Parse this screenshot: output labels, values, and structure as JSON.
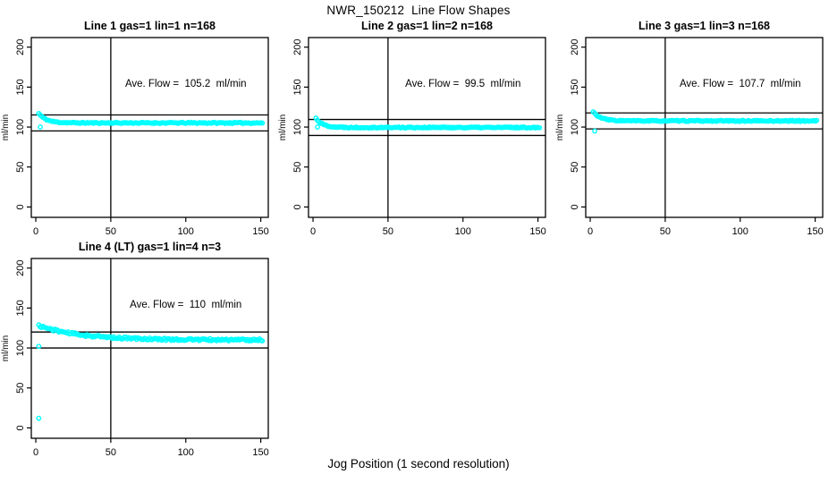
{
  "figure": {
    "title": "NWR_150212  Line Flow Shapes",
    "xlabel": "Jog Position (1 second resolution)",
    "background": "#ffffff",
    "axis_color": "#000000",
    "point_color": "#00ffff"
  },
  "chart_data": [
    {
      "type": "scatter",
      "title": "Line 1 gas=1 lin=1 n=168",
      "annotation": "Ave. Flow =  105.2  ml/min",
      "ave_flow_ml_min": 105.2,
      "n": 168,
      "ylabel": "ml/min",
      "x_ticks": [
        0,
        50,
        100,
        150
      ],
      "y_ticks": [
        0,
        50,
        100,
        150,
        200
      ],
      "xlim": [
        -3,
        155
      ],
      "ylim": [
        -13,
        212
      ],
      "vline_x": 50,
      "hlines": [
        115.2,
        95.2
      ],
      "curve": {
        "start": 117,
        "settle": 105.2,
        "tau": 5,
        "noise": 0.7,
        "x_from": 2,
        "x_to": 151,
        "seed": 11
      },
      "outliers": [
        [
          3,
          100
        ]
      ],
      "annotation_xy": [
        100,
        155
      ],
      "grid": false,
      "legend": null
    },
    {
      "type": "scatter",
      "title": "Line 2 gas=1 lin=2 n=168",
      "annotation": "Ave. Flow =  99.5  ml/min",
      "ave_flow_ml_min": 99.5,
      "n": 168,
      "ylabel": "ml/min",
      "x_ticks": [
        0,
        50,
        100,
        150
      ],
      "y_ticks": [
        0,
        50,
        100,
        150,
        200
      ],
      "xlim": [
        -3,
        155
      ],
      "ylim": [
        -13,
        212
      ],
      "vline_x": 50,
      "hlines": [
        109.5,
        89.5
      ],
      "curve": {
        "start": 111,
        "settle": 99.5,
        "tau": 4.5,
        "noise": 0.7,
        "x_from": 2,
        "x_to": 151,
        "seed": 22
      },
      "outliers": [
        [
          3,
          100
        ]
      ],
      "annotation_xy": [
        100,
        155
      ],
      "grid": false,
      "legend": null
    },
    {
      "type": "scatter",
      "title": "Line 3 gas=1 lin=3 n=168",
      "annotation": "Ave. Flow =  107.7  ml/min",
      "ave_flow_ml_min": 107.7,
      "n": 168,
      "ylabel": "ml/min",
      "x_ticks": [
        0,
        50,
        100,
        150
      ],
      "y_ticks": [
        0,
        50,
        100,
        150,
        200
      ],
      "xlim": [
        -3,
        155
      ],
      "ylim": [
        -13,
        212
      ],
      "vline_x": 50,
      "hlines": [
        117.7,
        97.7
      ],
      "curve": {
        "start": 119,
        "settle": 107.7,
        "tau": 5,
        "noise": 0.7,
        "x_from": 2,
        "x_to": 151,
        "seed": 33
      },
      "outliers": [
        [
          3,
          95
        ]
      ],
      "annotation_xy": [
        100,
        155
      ],
      "grid": false,
      "legend": null
    },
    {
      "type": "scatter",
      "title": "Line 4 (LT) gas=1 lin=4 n=3",
      "annotation": "Ave. Flow =  110  ml/min",
      "ave_flow_ml_min": 110,
      "n": 3,
      "ylabel": "ml/min",
      "x_ticks": [
        0,
        50,
        100,
        150
      ],
      "y_ticks": [
        0,
        50,
        100,
        150,
        200
      ],
      "xlim": [
        -3,
        155
      ],
      "ylim": [
        -13,
        212
      ],
      "vline_x": 50,
      "hlines": [
        120,
        100
      ],
      "curve": {
        "start": 128,
        "settle": 110,
        "tau": 28,
        "noise": 1.4,
        "x_from": 2,
        "x_to": 151,
        "seed": 44
      },
      "outliers": [
        [
          2,
          102
        ],
        [
          2,
          12
        ]
      ],
      "annotation_xy": [
        100,
        155
      ],
      "grid": false,
      "legend": null
    }
  ]
}
